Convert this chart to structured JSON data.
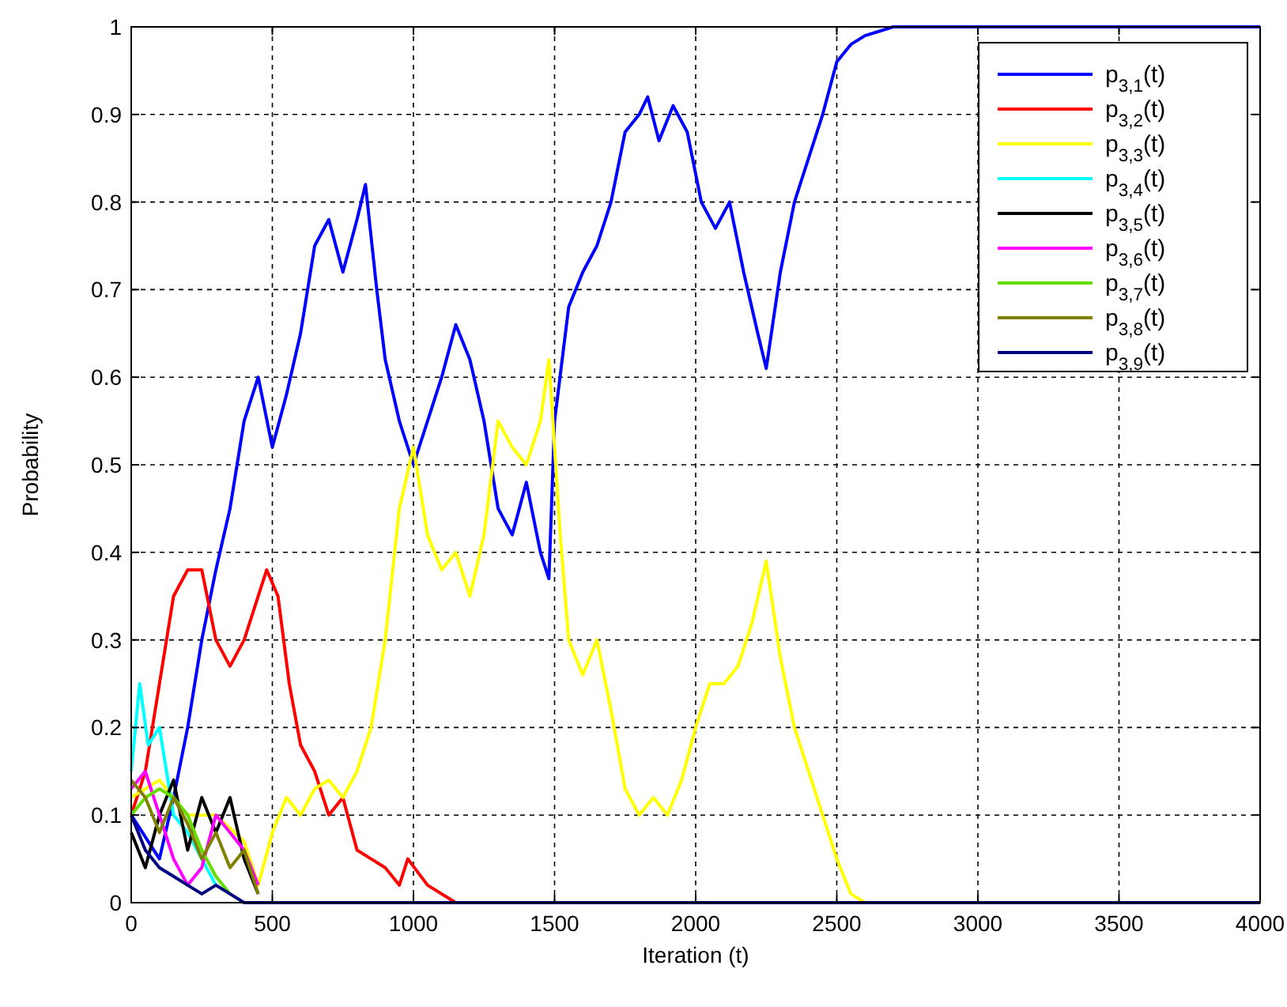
{
  "chart_data": {
    "type": "line",
    "xlabel": "Iteration (t)",
    "ylabel": "Probability",
    "xlim": [
      0,
      4000
    ],
    "ylim": [
      0,
      1
    ],
    "xticks": [
      0,
      500,
      1000,
      1500,
      2000,
      2500,
      3000,
      3500,
      4000
    ],
    "yticks": [
      0,
      0.1,
      0.2,
      0.3,
      0.4,
      0.5,
      0.6,
      0.7,
      0.8,
      0.9,
      1
    ],
    "grid": true,
    "legend": "top right",
    "line_style": "solid",
    "series": [
      {
        "name": "p$_{3,1}$(t)",
        "color": "#0000ff",
        "x": [
          0,
          100,
          150,
          200,
          250,
          300,
          350,
          400,
          450,
          500,
          550,
          600,
          650,
          700,
          750,
          800,
          830,
          870,
          900,
          950,
          1000,
          1050,
          1100,
          1150,
          1200,
          1250,
          1300,
          1350,
          1400,
          1450,
          1480,
          1500,
          1550,
          1600,
          1650,
          1700,
          1750,
          1800,
          1830,
          1870,
          1920,
          1970,
          2020,
          2070,
          2120,
          2170,
          2220,
          2250,
          2300,
          2350,
          2400,
          2450,
          2500,
          2550,
          2600,
          2700,
          4000
        ],
        "values": [
          0.1,
          0.05,
          0.12,
          0.2,
          0.3,
          0.38,
          0.45,
          0.55,
          0.6,
          0.52,
          0.58,
          0.65,
          0.75,
          0.78,
          0.72,
          0.78,
          0.82,
          0.7,
          0.62,
          0.55,
          0.5,
          0.55,
          0.6,
          0.66,
          0.62,
          0.55,
          0.45,
          0.42,
          0.48,
          0.4,
          0.37,
          0.55,
          0.68,
          0.72,
          0.75,
          0.8,
          0.88,
          0.9,
          0.92,
          0.87,
          0.91,
          0.88,
          0.8,
          0.77,
          0.8,
          0.72,
          0.65,
          0.61,
          0.72,
          0.8,
          0.85,
          0.9,
          0.96,
          0.98,
          0.99,
          1,
          1
        ]
      },
      {
        "name": "p$_{3,2}$(t)",
        "color": "#ff0000",
        "x": [
          0,
          50,
          100,
          150,
          200,
          250,
          300,
          350,
          400,
          450,
          480,
          520,
          560,
          600,
          650,
          700,
          750,
          800,
          850,
          900,
          950,
          980,
          1050,
          1150
        ],
        "values": [
          0.1,
          0.15,
          0.25,
          0.35,
          0.38,
          0.38,
          0.3,
          0.27,
          0.3,
          0.35,
          0.38,
          0.35,
          0.25,
          0.18,
          0.15,
          0.1,
          0.12,
          0.06,
          0.05,
          0.04,
          0.02,
          0.05,
          0.02,
          0
        ]
      },
      {
        "name": "p$_{3,3}$(t)",
        "color": "#ffff00",
        "x": [
          0,
          100,
          200,
          300,
          400,
          450,
          500,
          550,
          600,
          650,
          700,
          750,
          800,
          850,
          900,
          950,
          1000,
          1050,
          1100,
          1150,
          1200,
          1250,
          1300,
          1350,
          1400,
          1450,
          1480,
          1520,
          1550,
          1600,
          1650,
          1700,
          1750,
          1800,
          1850,
          1900,
          1950,
          2000,
          2050,
          2100,
          2150,
          2200,
          2250,
          2300,
          2350,
          2400,
          2450,
          2500,
          2550,
          2600
        ],
        "values": [
          0.12,
          0.14,
          0.1,
          0.1,
          0.07,
          0.02,
          0.08,
          0.12,
          0.1,
          0.13,
          0.14,
          0.12,
          0.15,
          0.2,
          0.3,
          0.45,
          0.52,
          0.42,
          0.38,
          0.4,
          0.35,
          0.42,
          0.55,
          0.52,
          0.5,
          0.55,
          0.62,
          0.42,
          0.3,
          0.26,
          0.3,
          0.22,
          0.13,
          0.1,
          0.12,
          0.1,
          0.14,
          0.2,
          0.25,
          0.25,
          0.27,
          0.32,
          0.39,
          0.28,
          0.2,
          0.15,
          0.1,
          0.05,
          0.01,
          0
        ]
      },
      {
        "name": "p$_{3,4}$(t)",
        "color": "#00ffff",
        "x": [
          0,
          30,
          60,
          100,
          150,
          200,
          250,
          300,
          350
        ],
        "values": [
          0.15,
          0.25,
          0.18,
          0.2,
          0.1,
          0.08,
          0.05,
          0.02,
          0.01
        ]
      },
      {
        "name": "p$_{3,5}$(t)",
        "color": "#000000",
        "x": [
          0,
          50,
          100,
          150,
          200,
          250,
          300,
          350,
          400,
          450
        ],
        "values": [
          0.08,
          0.04,
          0.1,
          0.14,
          0.06,
          0.12,
          0.08,
          0.12,
          0.05,
          0.01
        ]
      },
      {
        "name": "p$_{3,6}$(t)",
        "color": "#ff00ff",
        "x": [
          0,
          50,
          100,
          150,
          200,
          250,
          300,
          350,
          400,
          450
        ],
        "values": [
          0.13,
          0.15,
          0.1,
          0.05,
          0.02,
          0.04,
          0.1,
          0.08,
          0.06,
          0.02
        ]
      },
      {
        "name": "p$_{3,7}$(t)",
        "color": "#66dd00",
        "x": [
          0,
          50,
          100,
          150,
          200,
          250,
          300,
          350
        ],
        "values": [
          0.1,
          0.12,
          0.13,
          0.12,
          0.1,
          0.06,
          0.03,
          0.01
        ]
      },
      {
        "name": "p$_{3,8}$(t)",
        "color": "#808000",
        "x": [
          0,
          50,
          100,
          150,
          200,
          250,
          300,
          350,
          400,
          450
        ],
        "values": [
          0.14,
          0.12,
          0.08,
          0.12,
          0.09,
          0.05,
          0.08,
          0.04,
          0.06,
          0.01
        ]
      },
      {
        "name": "p$_{3,9}$(t)",
        "color": "#000080",
        "x": [
          0,
          50,
          100,
          150,
          200,
          250,
          300,
          350,
          400,
          4000
        ],
        "values": [
          0.1,
          0.06,
          0.04,
          0.03,
          0.02,
          0.01,
          0.02,
          0.01,
          0,
          0
        ]
      }
    ]
  }
}
